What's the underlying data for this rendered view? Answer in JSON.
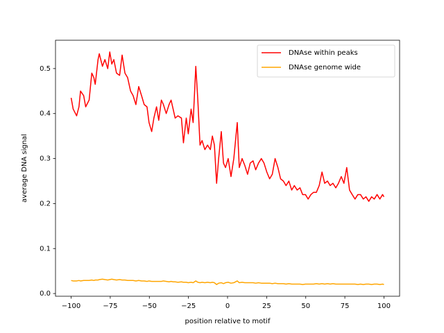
{
  "chart_data": {
    "type": "line",
    "xlabel": "position relative to motif",
    "ylabel": "average DNA signal",
    "xlim": [
      -110,
      110
    ],
    "ylim": [
      -0.006,
      0.563
    ],
    "xticks": [
      {
        "value": -100,
        "label": "−100"
      },
      {
        "value": -75,
        "label": "−75"
      },
      {
        "value": -50,
        "label": "−50"
      },
      {
        "value": -25,
        "label": "−25"
      },
      0,
      25,
      50,
      75,
      100
    ],
    "yticks": [
      {
        "value": 0,
        "label": "0.0"
      },
      0.1,
      0.2,
      0.3,
      0.4,
      0.5
    ],
    "legend": "upper right",
    "x": [
      -100,
      -98.7,
      -96.5,
      -95,
      -94,
      -92,
      -90.7,
      -88.5,
      -86.8,
      -85.5,
      -84.6,
      -82.8,
      -82,
      -80,
      -78.4,
      -76.6,
      -75.3,
      -74,
      -72.7,
      -71,
      -69,
      -67.4,
      -65.6,
      -63.9,
      -62,
      -60.4,
      -58.6,
      -56.8,
      -55,
      -53.3,
      -51.5,
      -50.2,
      -48.5,
      -47.1,
      -45.4,
      -44,
      -42.3,
      -41,
      -39.2,
      -37.4,
      -36.1,
      -34.8,
      -33.5,
      -31.7,
      -29.5,
      -28.2,
      -26.4,
      -25.1,
      -23.3,
      -22,
      -20.3,
      -19,
      -17.6,
      -16.3,
      -14.5,
      -12.8,
      -11,
      -9.7,
      -8.4,
      -7,
      -5.7,
      -4,
      -2.6,
      -1.3,
      0.4,
      2.2,
      4,
      6.2,
      7.5,
      9.3,
      11,
      12.8,
      14.5,
      16.3,
      18,
      19.8,
      21.6,
      23.3,
      25.1,
      26.9,
      28.6,
      30.4,
      32.2,
      33.9,
      35.7,
      37.4,
      39.2,
      41,
      42.7,
      44.5,
      46.3,
      48,
      49.8,
      51.5,
      53.3,
      55,
      56.8,
      58.6,
      60.4,
      62.1,
      63.9,
      65.6,
      67.4,
      69.2,
      70.9,
      72.7,
      74.4,
      76.2,
      78,
      79.7,
      81.5,
      83.3,
      85,
      86.8,
      88.5,
      90.3,
      92.1,
      93.8,
      95.6,
      97.4,
      99.1,
      100
    ],
    "series": [
      {
        "name": "DNAse within peaks",
        "color": "#ff0000",
        "values": [
          0.435,
          0.41,
          0.395,
          0.415,
          0.45,
          0.44,
          0.415,
          0.43,
          0.49,
          0.48,
          0.465,
          0.52,
          0.533,
          0.505,
          0.52,
          0.5,
          0.537,
          0.51,
          0.52,
          0.49,
          0.485,
          0.53,
          0.49,
          0.48,
          0.45,
          0.44,
          0.42,
          0.46,
          0.44,
          0.42,
          0.415,
          0.38,
          0.36,
          0.39,
          0.415,
          0.385,
          0.43,
          0.42,
          0.4,
          0.42,
          0.43,
          0.41,
          0.39,
          0.395,
          0.39,
          0.335,
          0.39,
          0.355,
          0.41,
          0.38,
          0.505,
          0.43,
          0.33,
          0.34,
          0.32,
          0.33,
          0.32,
          0.35,
          0.33,
          0.245,
          0.3,
          0.36,
          0.29,
          0.28,
          0.3,
          0.26,
          0.3,
          0.38,
          0.28,
          0.3,
          0.285,
          0.265,
          0.29,
          0.295,
          0.275,
          0.29,
          0.3,
          0.29,
          0.27,
          0.255,
          0.265,
          0.3,
          0.28,
          0.255,
          0.25,
          0.24,
          0.25,
          0.23,
          0.24,
          0.23,
          0.235,
          0.22,
          0.22,
          0.21,
          0.22,
          0.225,
          0.225,
          0.24,
          0.27,
          0.245,
          0.25,
          0.24,
          0.245,
          0.235,
          0.245,
          0.26,
          0.245,
          0.28,
          0.23,
          0.22,
          0.21,
          0.22,
          0.22,
          0.21,
          0.215,
          0.205,
          0.215,
          0.21,
          0.22,
          0.21,
          0.22,
          0.215
        ]
      },
      {
        "name": "DNAse genome wide",
        "color": "#ffa500",
        "values": [
          0.029,
          0.028,
          0.028,
          0.029,
          0.028,
          0.029,
          0.029,
          0.029,
          0.03,
          0.029,
          0.03,
          0.03,
          0.031,
          0.032,
          0.031,
          0.03,
          0.031,
          0.032,
          0.031,
          0.03,
          0.031,
          0.03,
          0.03,
          0.029,
          0.029,
          0.029,
          0.028,
          0.029,
          0.028,
          0.028,
          0.027,
          0.028,
          0.027,
          0.027,
          0.027,
          0.027,
          0.027,
          0.028,
          0.027,
          0.026,
          0.027,
          0.026,
          0.026,
          0.025,
          0.026,
          0.025,
          0.025,
          0.024,
          0.025,
          0.024,
          0.028,
          0.025,
          0.024,
          0.025,
          0.024,
          0.025,
          0.024,
          0.025,
          0.024,
          0.02,
          0.023,
          0.024,
          0.022,
          0.024,
          0.025,
          0.023,
          0.024,
          0.028,
          0.024,
          0.025,
          0.024,
          0.024,
          0.024,
          0.024,
          0.023,
          0.024,
          0.023,
          0.023,
          0.023,
          0.023,
          0.022,
          0.023,
          0.022,
          0.022,
          0.022,
          0.021,
          0.022,
          0.021,
          0.021,
          0.021,
          0.021,
          0.02,
          0.021,
          0.021,
          0.021,
          0.021,
          0.022,
          0.021,
          0.022,
          0.021,
          0.022,
          0.021,
          0.022,
          0.021,
          0.021,
          0.021,
          0.021,
          0.021,
          0.021,
          0.021,
          0.021,
          0.02,
          0.021,
          0.02,
          0.021,
          0.021,
          0.02,
          0.021,
          0.021,
          0.02,
          0.021,
          0.02
        ]
      }
    ]
  }
}
